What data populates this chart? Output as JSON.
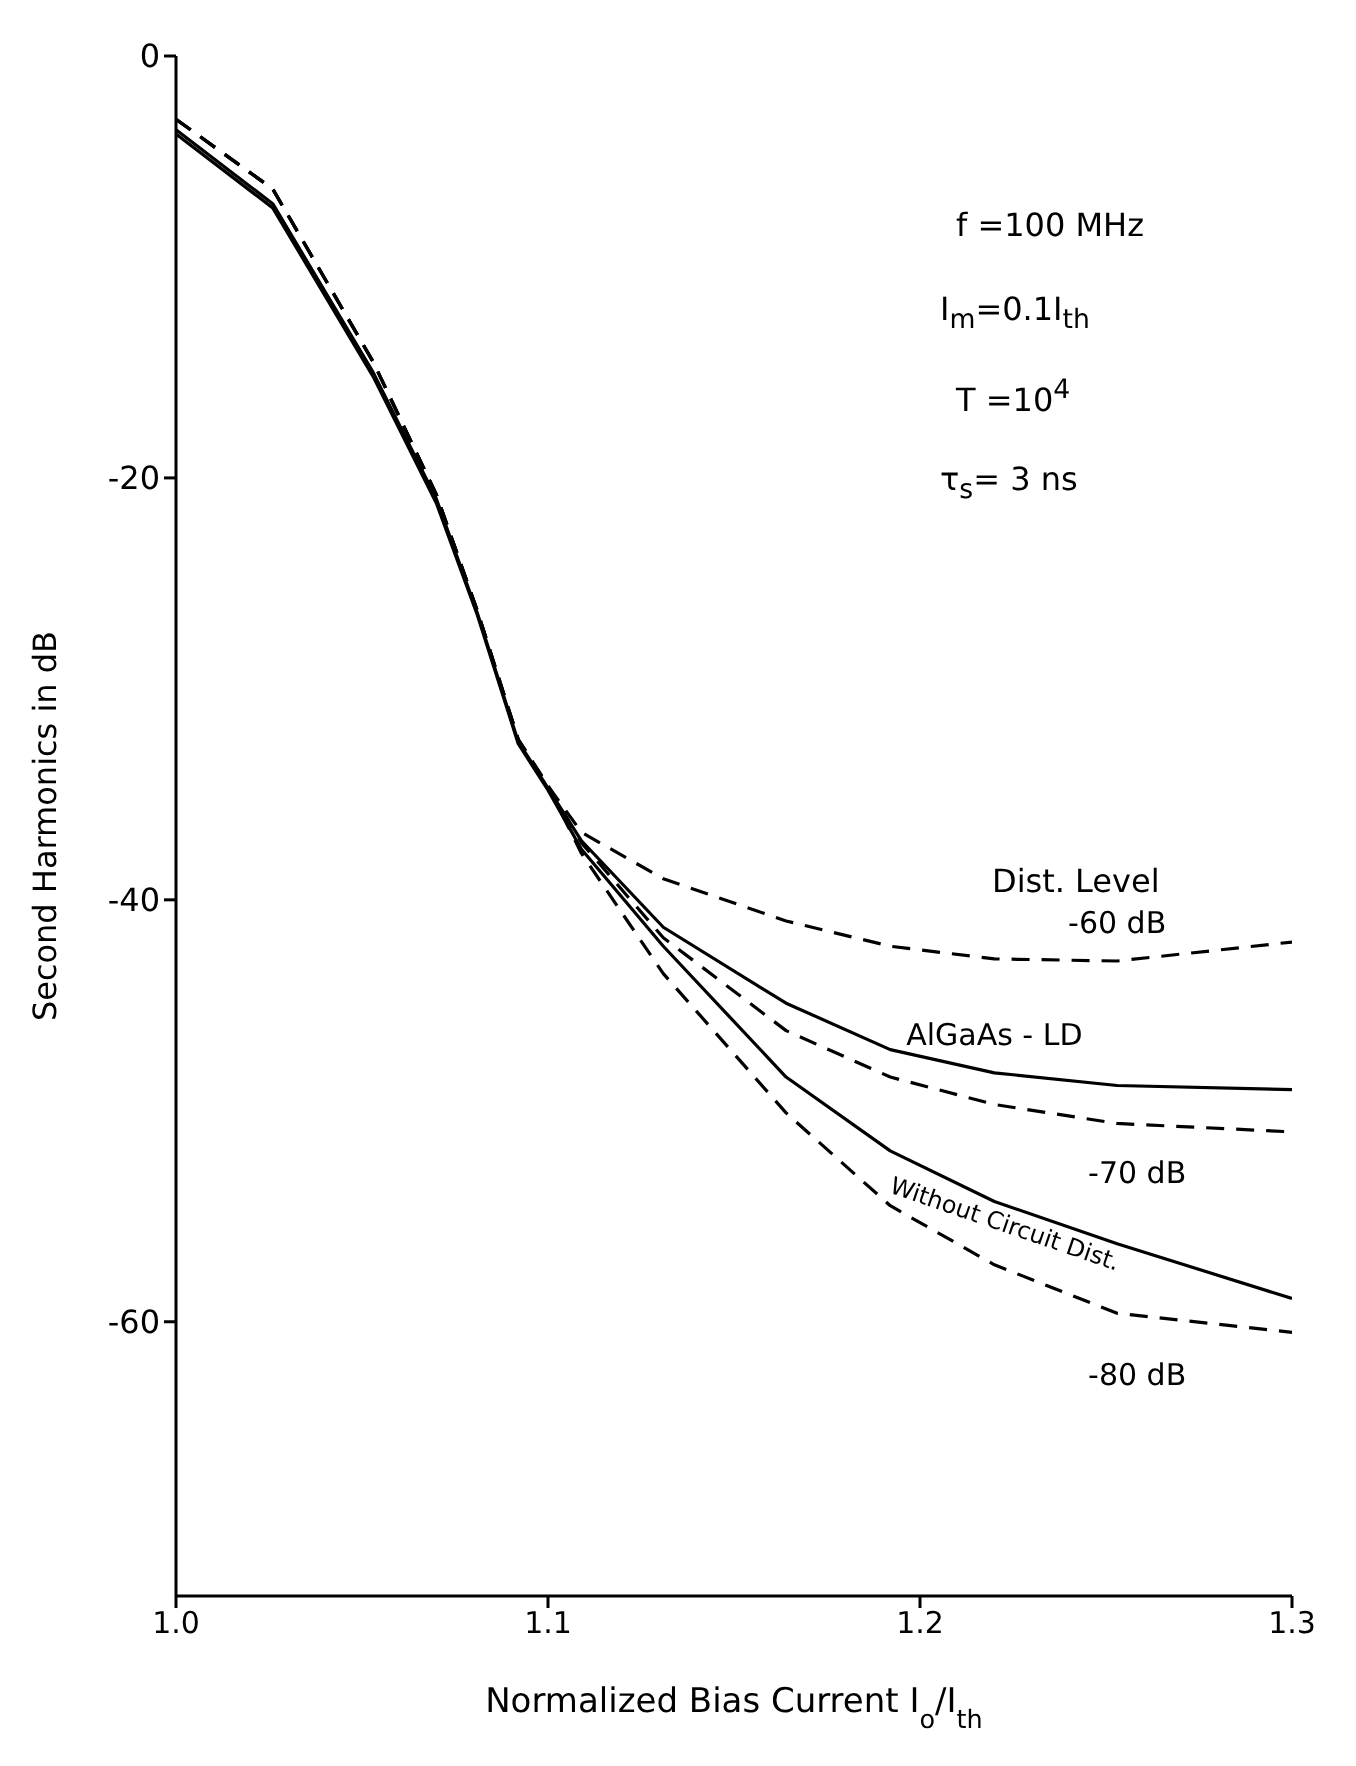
{
  "chart_data": {
    "type": "line",
    "xlabel": "Normalized  Bias  Current  I$_{o}$/I$_{th}$",
    "ylabel": "Second Harmonics  in dB",
    "x": [
      1.0,
      1.026,
      1.053,
      1.07,
      1.081,
      1.092,
      1.1,
      1.109,
      1.131,
      1.164,
      1.192,
      1.22,
      1.253,
      1.3
    ],
    "series": [
      {
        "name": "-60 dB",
        "color": "#000000",
        "line_style": "dashed",
        "values": [
          -3,
          -6.3,
          -14.5,
          -20.8,
          -26.3,
          -32.4,
          -34.6,
          -36.8,
          -39,
          -41,
          -42.2,
          -42.8,
          -42.9,
          -42
        ]
      },
      {
        "name": "AlGaAs - LD",
        "color": "#000000",
        "line_style": "solid",
        "values": [
          -3.5,
          -7,
          -15,
          -21,
          -26.4,
          -32.5,
          -34.7,
          -37.2,
          -41.3,
          -44.9,
          -47.1,
          -48.2,
          -48.8,
          -49
        ]
      },
      {
        "name": "-70 dB",
        "color": "#000000",
        "line_style": "dashed",
        "values": [
          -3,
          -6.3,
          -14.5,
          -20.8,
          -26.3,
          -32.4,
          -34.6,
          -37.3,
          -41.8,
          -46.2,
          -48.4,
          -49.7,
          -50.6,
          -51
        ]
      },
      {
        "name": "Without Circuit Dist.",
        "color": "#000000",
        "line_style": "solid",
        "values": [
          -3.7,
          -7.2,
          -15.2,
          -21.2,
          -26.5,
          -32.6,
          -34.8,
          -37.6,
          -42.2,
          -48.4,
          -51.9,
          -54.3,
          -56.3,
          -58.9
        ]
      },
      {
        "name": "-80 dB",
        "color": "#000000",
        "line_style": "dashed",
        "values": [
          -3,
          -6.3,
          -14.5,
          -20.8,
          -26.3,
          -32.4,
          -34.6,
          -37.8,
          -43.5,
          -50.1,
          -54.5,
          -57.3,
          -59.6,
          -60.5
        ]
      }
    ],
    "annotations": [
      "f =100 MHz",
      "I$_{m}$=0.1I$_{th}$",
      "T =10$^{4}$",
      "τ$_{s}$= 3 ns",
      "Dist. Level"
    ],
    "xlim": [
      1.0,
      1.3
    ],
    "xticks": [
      {
        "value": 1.0,
        "label": "1.0"
      },
      1.1,
      1.2,
      1.3
    ],
    "ylim": [
      -73,
      0
    ],
    "yticks": [
      0,
      -20,
      -40,
      -60
    ],
    "grid": false,
    "legend": false,
    "marker": "none"
  }
}
